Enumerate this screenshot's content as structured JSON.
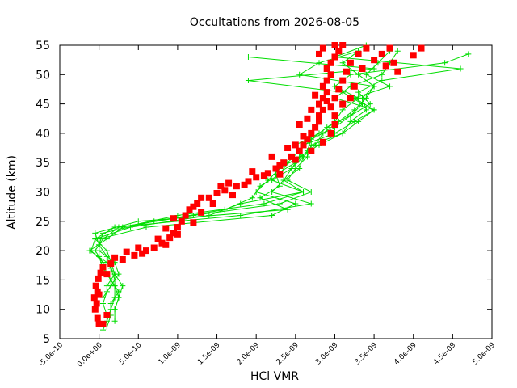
{
  "chart_data": {
    "type": "scatter",
    "title": "Occultations from 2026-08-05",
    "xlabel": "HCl VMR",
    "ylabel": "Altitude (km)",
    "xlim": [
      -5e-10,
      5e-09
    ],
    "ylim": [
      5,
      55
    ],
    "x_ticks": [
      -5e-10,
      0,
      5e-10,
      1e-09,
      1.5e-09,
      2e-09,
      2.5e-09,
      3e-09,
      3.5e-09,
      4e-09,
      4.5e-09,
      5e-09
    ],
    "x_tick_labels": [
      "-5.0e-10",
      "0.0e+00",
      "5.0e-10",
      "1.0e-09",
      "1.5e-09",
      "2.0e-09",
      "2.5e-09",
      "3.0e-09",
      "3.5e-09",
      "4.0e-09",
      "4.5e-09",
      "5.0e-09"
    ],
    "y_ticks": [
      5,
      10,
      15,
      20,
      25,
      30,
      35,
      40,
      45,
      50,
      55
    ],
    "y_tick_labels": [
      "5",
      "10",
      "15",
      "20",
      "25",
      "30",
      "35",
      "40",
      "45",
      "50",
      "55"
    ],
    "grid": false,
    "legend": "none",
    "series": [
      {
        "color": "#00dd00",
        "marker": "plus",
        "line": true,
        "profiles": [
          {
            "y": [
              6.5,
              8,
              10,
              12,
              14,
              16,
              18,
              20,
              22,
              24,
              26,
              28,
              30,
              32,
              34,
              36,
              38,
              40,
              42,
              44,
              46,
              48,
              50,
              52,
              54
            ],
            "x": [
              5e-11,
              1e-10,
              1.5e-10,
              2e-10,
              2e-10,
              1e-10,
              5e-11,
              -1e-10,
              -5e-11,
              2e-10,
              1.8e-09,
              2.7e-09,
              2.2e-09,
              2.35e-09,
              2.55e-09,
              2.6e-09,
              2.75e-09,
              2.85e-09,
              3.05e-09,
              3.25e-09,
              3.4e-09,
              3.5e-09,
              3.3e-09,
              3.1e-09,
              3.3e-09
            ]
          },
          {
            "y": [
              7,
              9,
              11,
              13,
              15,
              17,
              19,
              21,
              23,
              25,
              27,
              29,
              31,
              33,
              35,
              37,
              39,
              41,
              43,
              45,
              47,
              49,
              51,
              53,
              55
            ],
            "x": [
              1e-10,
              1.5e-10,
              1.5e-10,
              2.5e-10,
              1.5e-10,
              5e-11,
              0.0,
              0.0,
              -5e-11,
              5e-10,
              2.4e-09,
              2.05e-09,
              2.3e-09,
              2.25e-09,
              2.5e-09,
              2.65e-09,
              2.7e-09,
              2.9e-09,
              3.2e-09,
              3.45e-09,
              3.3e-09,
              3.6e-09,
              4.6e-09,
              3e-09,
              3.4e-09
            ]
          },
          {
            "y": [
              8,
              10,
              12,
              14,
              16,
              18,
              20,
              22,
              24,
              26,
              28,
              30,
              32,
              34,
              36,
              38,
              40,
              42,
              44,
              46,
              48,
              50,
              52,
              53.5
            ],
            "x": [
              2e-10,
              2e-10,
              2.5e-10,
              3e-10,
              2e-10,
              1e-10,
              -1.2e-10,
              1e-10,
              3e-10,
              1e-09,
              2.1e-09,
              2.6e-09,
              2.2e-09,
              2.45e-09,
              2.6e-09,
              2.5e-09,
              2.8e-09,
              3e-09,
              3.1e-09,
              3.3e-09,
              3e-09,
              3.2e-09,
              4.4e-09,
              4.7e-09
            ]
          },
          {
            "y": [
              9,
              11,
              13,
              15,
              17,
              19,
              21,
              23,
              25,
              27,
              29,
              31,
              33,
              35,
              37,
              39,
              41,
              43,
              45,
              47,
              49,
              51,
              53
            ],
            "x": [
              1e-10,
              5e-11,
              1e-10,
              2e-10,
              1.5e-10,
              1e-10,
              0.0,
              5e-11,
              7e-10,
              1.6e-09,
              1.95e-09,
              2.05e-09,
              2.3e-09,
              2.4e-09,
              2.55e-09,
              2.7e-09,
              3e-09,
              3.2e-09,
              3.35e-09,
              3.1e-09,
              1.9e-09,
              3.5e-09,
              1.9e-09
            ]
          },
          {
            "y": [
              10,
              12,
              14,
              16,
              18,
              20,
              22,
              24,
              26,
              28,
              30,
              32,
              34,
              36,
              38,
              40,
              42,
              44,
              46,
              48,
              50,
              52,
              54
            ],
            "x": [
              2e-10,
              2.5e-10,
              2e-10,
              1e-10,
              5e-11,
              -5e-11,
              5e-11,
              2.5e-10,
              1.2e-09,
              2.3e-09,
              2.7e-09,
              2.4e-09,
              2.5e-09,
              2.65e-09,
              2.7e-09,
              3.1e-09,
              3.3e-09,
              3.5e-09,
              3e-09,
              3.2e-09,
              3.6e-09,
              3.7e-09,
              3.8e-09
            ]
          },
          {
            "y": [
              12,
              14,
              16,
              18,
              20,
              22,
              24,
              26,
              28,
              30,
              32,
              34,
              36,
              38,
              40,
              42,
              44,
              46,
              48,
              50,
              52,
              54
            ],
            "x": [
              5e-11,
              1.5e-10,
              2.5e-10,
              2e-10,
              0.0,
              0.0,
              6e-10,
              2.2e-09,
              2.5e-09,
              2e-09,
              2.15e-09,
              2.3e-09,
              2.55e-09,
              2.8e-09,
              3.1e-09,
              3.2e-09,
              3.4e-09,
              3.35e-09,
              3.5e-09,
              2.55e-09,
              2.8e-09,
              3.3e-09
            ]
          },
          {
            "y": [
              14,
              16,
              18,
              20,
              22,
              24,
              26,
              28,
              30,
              32,
              34,
              36,
              38,
              40,
              42,
              44,
              46,
              48,
              50,
              52,
              54
            ],
            "x": [
              1e-10,
              2e-10,
              1.5e-10,
              1e-10,
              -5e-11,
              4e-10,
              1.4e-09,
              1.8e-09,
              2.6e-09,
              2.35e-09,
              2.45e-09,
              2.55e-09,
              2.6e-09,
              3e-09,
              3.25e-09,
              3.5e-09,
              3.25e-09,
              3.7e-09,
              3.4e-09,
              3.55e-09,
              3.7e-09
            ]
          }
        ]
      },
      {
        "color": "#ff0000",
        "marker": "filled-square",
        "line": false,
        "points": [
          {
            "x": 0.0,
            "y": 7.5
          },
          {
            "x": 5e-11,
            "y": 7.5
          },
          {
            "x": -2e-11,
            "y": 8.5
          },
          {
            "x": -5e-11,
            "y": 10
          },
          {
            "x": -3e-11,
            "y": 11
          },
          {
            "x": -6e-11,
            "y": 12
          },
          {
            "x": -2e-11,
            "y": 13
          },
          {
            "x": -4e-11,
            "y": 14
          },
          {
            "x": -1e-11,
            "y": 15.2
          },
          {
            "x": 2e-11,
            "y": 16.2
          },
          {
            "x": 5e-11,
            "y": 17.2
          },
          {
            "x": 1.5e-10,
            "y": 17.8
          },
          {
            "x": 3e-10,
            "y": 18.5
          },
          {
            "x": 4.5e-10,
            "y": 19.2
          },
          {
            "x": 6e-10,
            "y": 20
          },
          {
            "x": 7e-10,
            "y": 20.5
          },
          {
            "x": 8e-10,
            "y": 21.3
          },
          {
            "x": 9e-10,
            "y": 22.2
          },
          {
            "x": 9.5e-10,
            "y": 23
          },
          {
            "x": 1e-09,
            "y": 24
          },
          {
            "x": 1.05e-09,
            "y": 25
          },
          {
            "x": 1.1e-09,
            "y": 26
          },
          {
            "x": 1.15e-09,
            "y": 27
          },
          {
            "x": 1.25e-09,
            "y": 28
          },
          {
            "x": 1.4e-09,
            "y": 29
          },
          {
            "x": 1.5e-09,
            "y": 29.8
          },
          {
            "x": 1.6e-09,
            "y": 30.3
          },
          {
            "x": 1.75e-09,
            "y": 31
          },
          {
            "x": 1.9e-09,
            "y": 31.8
          },
          {
            "x": 2e-09,
            "y": 32.5
          },
          {
            "x": 2.15e-09,
            "y": 33.2
          },
          {
            "x": 2.25e-09,
            "y": 34
          },
          {
            "x": 2.35e-09,
            "y": 35
          },
          {
            "x": 2.45e-09,
            "y": 36
          },
          {
            "x": 2.55e-09,
            "y": 37
          },
          {
            "x": 2.6e-09,
            "y": 38
          },
          {
            "x": 2.65e-09,
            "y": 39
          },
          {
            "x": 2.7e-09,
            "y": 40
          },
          {
            "x": 2.75e-09,
            "y": 41
          },
          {
            "x": 2.8e-09,
            "y": 42
          },
          {
            "x": 2.8e-09,
            "y": 43
          },
          {
            "x": 2.85e-09,
            "y": 44
          },
          {
            "x": 2.8e-09,
            "y": 45
          },
          {
            "x": 2.85e-09,
            "y": 46
          },
          {
            "x": 2.9e-09,
            "y": 47
          },
          {
            "x": 2.85e-09,
            "y": 48
          },
          {
            "x": 2.9e-09,
            "y": 49
          },
          {
            "x": 2.95e-09,
            "y": 50
          },
          {
            "x": 2.9e-09,
            "y": 51
          },
          {
            "x": 2.95e-09,
            "y": 52
          },
          {
            "x": 3e-09,
            "y": 53
          },
          {
            "x": 3.05e-09,
            "y": 54
          },
          {
            "x": 3e-09,
            "y": 55
          },
          {
            "x": 1e-10,
            "y": 9
          },
          {
            "x": 0.0,
            "y": 12.5
          },
          {
            "x": 1e-10,
            "y": 16
          },
          {
            "x": 2e-10,
            "y": 18.8
          },
          {
            "x": 5.5e-10,
            "y": 19.5
          },
          {
            "x": 8.5e-10,
            "y": 21
          },
          {
            "x": 1e-09,
            "y": 22.8
          },
          {
            "x": 1.2e-09,
            "y": 24.8
          },
          {
            "x": 1.3e-09,
            "y": 26.5
          },
          {
            "x": 1.45e-09,
            "y": 28
          },
          {
            "x": 1.7e-09,
            "y": 29.5
          },
          {
            "x": 1.85e-09,
            "y": 31.2
          },
          {
            "x": 2.1e-09,
            "y": 32.8
          },
          {
            "x": 2.3e-09,
            "y": 34.5
          },
          {
            "x": 2.5e-09,
            "y": 35.5
          },
          {
            "x": 2.7e-09,
            "y": 37
          },
          {
            "x": 2.85e-09,
            "y": 38.5
          },
          {
            "x": 2.95e-09,
            "y": 40
          },
          {
            "x": 3e-09,
            "y": 41.5
          },
          {
            "x": 3e-09,
            "y": 43
          },
          {
            "x": 2.95e-09,
            "y": 44.5
          },
          {
            "x": 3e-09,
            "y": 46
          },
          {
            "x": 3.05e-09,
            "y": 47.5
          },
          {
            "x": 3.1e-09,
            "y": 49
          },
          {
            "x": 3.15e-09,
            "y": 50.5
          },
          {
            "x": 3.2e-09,
            "y": 52
          },
          {
            "x": 3.3e-09,
            "y": 53.5
          },
          {
            "x": 3.4e-09,
            "y": 54.5
          },
          {
            "x": 2.6e-09,
            "y": 39.5
          },
          {
            "x": 2.5e-09,
            "y": 38
          },
          {
            "x": 2.4e-09,
            "y": 37.5
          },
          {
            "x": 2.2e-09,
            "y": 36
          },
          {
            "x": 2.3e-09,
            "y": 33
          },
          {
            "x": 1.95e-09,
            "y": 33.5
          },
          {
            "x": 1.65e-09,
            "y": 31.5
          },
          {
            "x": 1.55e-09,
            "y": 31
          },
          {
            "x": 1.3e-09,
            "y": 29
          },
          {
            "x": 1.2e-09,
            "y": 27.5
          },
          {
            "x": 9.5e-10,
            "y": 25.5
          },
          {
            "x": 8.5e-10,
            "y": 23.8
          },
          {
            "x": 7.5e-10,
            "y": 22
          },
          {
            "x": 5e-10,
            "y": 20.5
          },
          {
            "x": 3.5e-10,
            "y": 19.8
          },
          {
            "x": 3.2e-09,
            "y": 46
          },
          {
            "x": 3.1e-09,
            "y": 45
          },
          {
            "x": 3.25e-09,
            "y": 48
          },
          {
            "x": 3.35e-09,
            "y": 51
          },
          {
            "x": 3.5e-09,
            "y": 52.5
          },
          {
            "x": 3.6e-09,
            "y": 53.5
          },
          {
            "x": 3.7e-09,
            "y": 54.5
          },
          {
            "x": 3.75e-09,
            "y": 52
          },
          {
            "x": 3.8e-09,
            "y": 50.5
          },
          {
            "x": 3.65e-09,
            "y": 51.5
          },
          {
            "x": 4.1e-09,
            "y": 54.5
          },
          {
            "x": 4e-09,
            "y": 53.3
          },
          {
            "x": 2.8e-09,
            "y": 53.5
          },
          {
            "x": 2.85e-09,
            "y": 54.5
          },
          {
            "x": 3.1e-09,
            "y": 55
          },
          {
            "x": 2.7e-09,
            "y": 44
          },
          {
            "x": 2.75e-09,
            "y": 46.5
          },
          {
            "x": 2.65e-09,
            "y": 42.5
          },
          {
            "x": 2.55e-09,
            "y": 41.5
          },
          {
            "x": 2.9e-09,
            "y": 45.5
          }
        ]
      }
    ]
  }
}
